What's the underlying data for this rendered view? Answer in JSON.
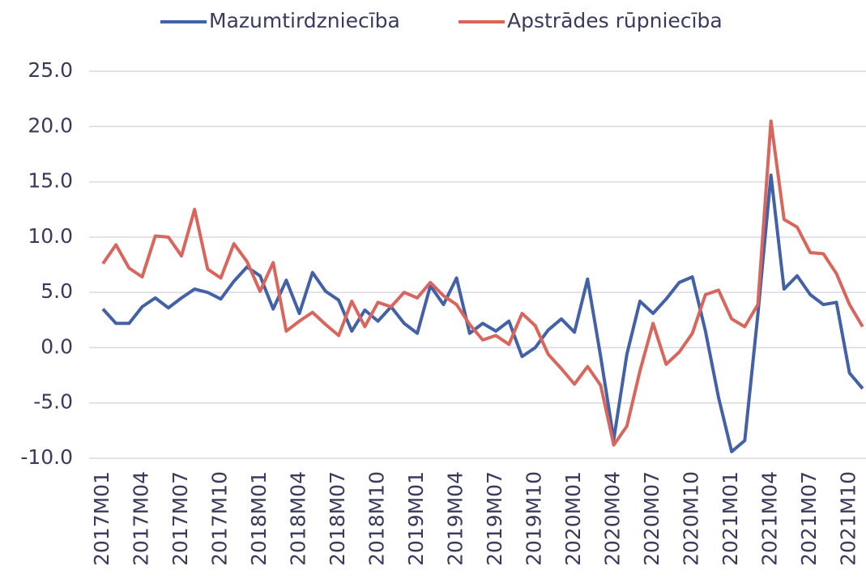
{
  "chart_data": {
    "type": "line",
    "categories": [
      "2017M01",
      null,
      null,
      "2017M04",
      null,
      null,
      "2017M07",
      null,
      null,
      "2017M10",
      null,
      null,
      "2018M01",
      null,
      null,
      "2018M04",
      null,
      null,
      "2018M07",
      null,
      null,
      "2018M10",
      null,
      null,
      "2019M01",
      null,
      null,
      "2019M04",
      null,
      null,
      "2019M07",
      null,
      null,
      "2019M10",
      null,
      null,
      "2020M01",
      null,
      null,
      "2020M04",
      null,
      null,
      "2020M07",
      null,
      null,
      "2020M10",
      null,
      null,
      "2021M01",
      null,
      null,
      "2021M04",
      null,
      null,
      "2021M07",
      null,
      null,
      "2021M10",
      null
    ],
    "series": [
      {
        "name": "Mazumtirdzniecība",
        "color": "#4361a6",
        "values": [
          3.5,
          2.2,
          2.2,
          3.7,
          4.5,
          3.6,
          4.5,
          5.3,
          5.0,
          4.4,
          6.0,
          7.3,
          6.5,
          3.5,
          6.1,
          3.1,
          6.8,
          5.1,
          4.3,
          1.5,
          3.4,
          2.4,
          3.7,
          2.2,
          1.3,
          5.6,
          3.9,
          6.3,
          1.3,
          2.2,
          1.5,
          2.4,
          -0.8,
          0.0,
          1.6,
          2.6,
          1.4,
          6.2,
          -0.8,
          -8.3,
          -0.6,
          4.2,
          3.1,
          4.4,
          5.9,
          6.4,
          1.5,
          -4.5,
          -9.4,
          -8.4,
          3.0,
          15.6,
          5.3,
          6.5,
          4.8,
          3.9,
          4.1,
          -2.3,
          -3.7
        ]
      },
      {
        "name": "Apstrādes rūpniecība",
        "color": "#d9665d",
        "values": [
          7.6,
          9.3,
          7.2,
          6.4,
          10.1,
          10.0,
          8.3,
          12.5,
          7.1,
          6.3,
          9.4,
          7.8,
          5.1,
          7.7,
          1.5,
          2.4,
          3.2,
          2.1,
          1.1,
          4.2,
          1.9,
          4.1,
          3.7,
          5.0,
          4.5,
          5.9,
          4.7,
          3.9,
          2.1,
          0.7,
          1.1,
          0.3,
          3.1,
          2.0,
          -0.6,
          -1.9,
          -3.3,
          -1.7,
          -3.4,
          -8.8,
          -7.1,
          -2.1,
          2.2,
          -1.5,
          -0.4,
          1.3,
          4.8,
          5.2,
          2.6,
          1.9,
          3.9,
          20.5,
          11.6,
          10.9,
          8.6,
          8.5,
          6.7,
          3.9,
          1.9
        ]
      }
    ],
    "ylim": [
      -10,
      25
    ],
    "yticks": [
      {
        "value": -10,
        "label": "-10.0"
      },
      {
        "value": -5,
        "label": "-5.0"
      },
      {
        "value": 0,
        "label": "0.0"
      },
      {
        "value": 5,
        "label": "5.0"
      },
      {
        "value": 10,
        "label": "10.0"
      },
      {
        "value": 15,
        "label": "15.0"
      },
      {
        "value": 20,
        "label": "20.0"
      },
      {
        "value": 25,
        "label": "25.0"
      }
    ],
    "grid": true
  }
}
